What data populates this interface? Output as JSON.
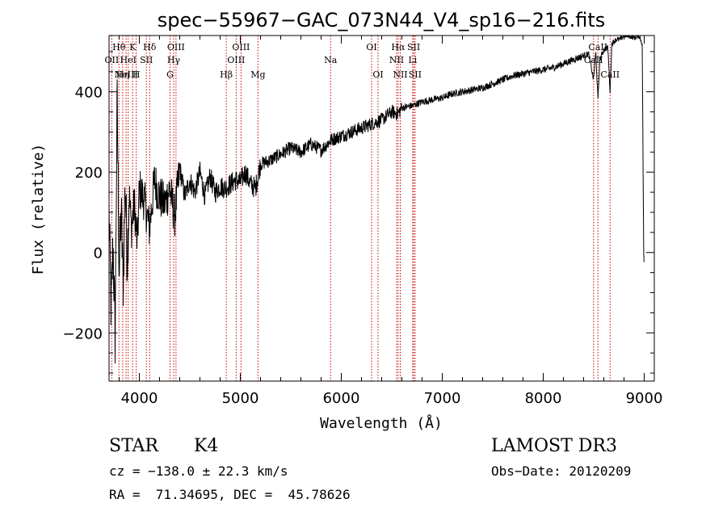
{
  "chart_data": {
    "type": "line",
    "title": "spec−55967−GAC_073N44_V4_sp16−216.fits",
    "xlabel": "Wavelength (Å)",
    "ylabel": "Flux (relative)",
    "xlim": [
      3700,
      9100
    ],
    "ylim": [
      -320,
      540
    ],
    "xticks": [
      4000,
      5000,
      6000,
      7000,
      8000,
      9000
    ],
    "yticks": [
      -200,
      0,
      200,
      400
    ],
    "xtick_labels": [
      "4000",
      "5000",
      "6000",
      "7000",
      "8000",
      "9000"
    ],
    "ytick_labels": [
      "−200",
      "0",
      "200",
      "400"
    ],
    "series": [
      {
        "name": "flux",
        "x": [
          3700,
          3720,
          3740,
          3760,
          3780,
          3800,
          3820,
          3840,
          3860,
          3880,
          3900,
          3920,
          3950,
          3980,
          4000,
          4050,
          4100,
          4150,
          4200,
          4250,
          4300,
          4350,
          4400,
          4450,
          4500,
          4550,
          4600,
          4650,
          4700,
          4750,
          4800,
          4850,
          4900,
          4950,
          5000,
          5050,
          5100,
          5150,
          5200,
          5300,
          5400,
          5500,
          5600,
          5700,
          5800,
          5900,
          6000,
          6100,
          6200,
          6300,
          6400,
          6500,
          6560,
          6600,
          6700,
          6800,
          6900,
          7000,
          7100,
          7200,
          7300,
          7400,
          7500,
          7600,
          7700,
          7800,
          7900,
          8000,
          8100,
          8200,
          8300,
          8400,
          8450,
          8498,
          8520,
          8542,
          8560,
          8600,
          8640,
          8662,
          8680,
          8720,
          8760,
          8800,
          8850,
          8900,
          8950,
          8980,
          8995,
          9000
        ],
        "y": [
          100,
          -150,
          20,
          -210,
          390,
          -50,
          100,
          -80,
          180,
          -20,
          150,
          60,
          120,
          20,
          160,
          130,
          60,
          180,
          140,
          120,
          160,
          90,
          210,
          140,
          180,
          150,
          200,
          140,
          190,
          150,
          165,
          160,
          170,
          180,
          175,
          200,
          170,
          160,
          220,
          230,
          245,
          260,
          250,
          270,
          255,
          280,
          290,
          300,
          310,
          320,
          330,
          350,
          345,
          360,
          365,
          375,
          380,
          385,
          395,
          400,
          405,
          410,
          420,
          430,
          440,
          445,
          450,
          455,
          460,
          470,
          480,
          490,
          495,
          430,
          500,
          380,
          480,
          505,
          510,
          400,
          520,
          530,
          530,
          540,
          540,
          535,
          540,
          520,
          0,
          -40
        ]
      }
    ],
    "line_markers": [
      {
        "wavelength": 3727,
        "label": "OII",
        "row": 2
      },
      {
        "wavelength": 3798,
        "label": "Hθ",
        "row": 1
      },
      {
        "wavelength": 3835,
        "label": "Hη",
        "row": 3
      },
      {
        "wavelength": 3869,
        "label": "NeIII",
        "row": 3
      },
      {
        "wavelength": 3890,
        "label": "HeI",
        "row": 2
      },
      {
        "wavelength": 3934,
        "label": "K",
        "row": 1
      },
      {
        "wavelength": 3969,
        "label": "H",
        "row": 3
      },
      {
        "wavelength": 4070,
        "label": "SII",
        "row": 2
      },
      {
        "wavelength": 4102,
        "label": "Hδ",
        "row": 1
      },
      {
        "wavelength": 4304,
        "label": "G",
        "row": 3
      },
      {
        "wavelength": 4340,
        "label": "Hγ",
        "row": 2
      },
      {
        "wavelength": 4363,
        "label": "OIII",
        "row": 1
      },
      {
        "wavelength": 4861,
        "label": "Hβ",
        "row": 3
      },
      {
        "wavelength": 4959,
        "label": "OIII",
        "row": 2
      },
      {
        "wavelength": 5007,
        "label": "OIII",
        "row": 1
      },
      {
        "wavelength": 5175,
        "label": "Mg",
        "row": 3
      },
      {
        "wavelength": 5894,
        "label": "Na",
        "row": 2
      },
      {
        "wavelength": 6300,
        "label": "OI",
        "row": 1
      },
      {
        "wavelength": 6364,
        "label": "OI",
        "row": 3
      },
      {
        "wavelength": 6548,
        "label": "NII",
        "row": 2
      },
      {
        "wavelength": 6563,
        "label": "Hα",
        "row": 1
      },
      {
        "wavelength": 6584,
        "label": "NII",
        "row": 3
      },
      {
        "wavelength": 6707,
        "label": "Li",
        "row": 2
      },
      {
        "wavelength": 6717,
        "label": "SII",
        "row": 1
      },
      {
        "wavelength": 6731,
        "label": "SII",
        "row": 3
      },
      {
        "wavelength": 8498,
        "label": "CaII",
        "row": 2
      },
      {
        "wavelength": 8542,
        "label": "CaII",
        "row": 1
      },
      {
        "wavelength": 8662,
        "label": "CaII",
        "row": 3
      }
    ],
    "line_marker_color": "#cc0000"
  },
  "info": {
    "object_class": "STAR",
    "subclass": "K4",
    "survey": "LAMOST DR3",
    "cz": "cz = −138.0 ± 22.3 km/s",
    "obs_date": "Obs−Date: 20120209",
    "coords": "RA =  71.34695, DEC =  45.78626"
  }
}
